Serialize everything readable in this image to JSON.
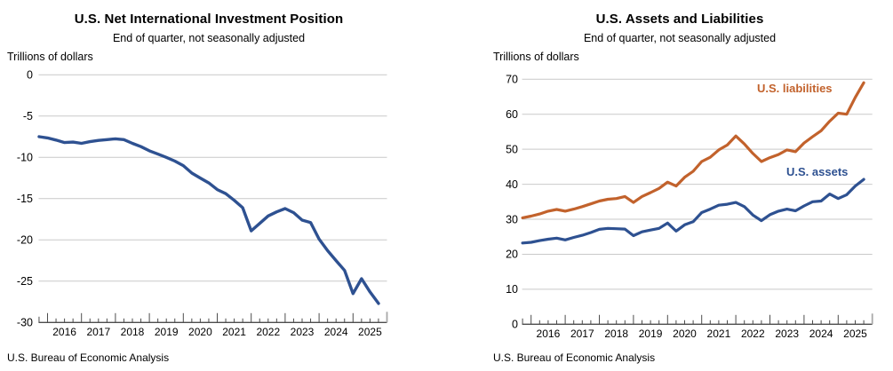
{
  "page": {
    "source_note": "U.S. Bureau of Economic Analysis"
  },
  "quarters": [
    "2015Q3",
    "2015Q4",
    "2016Q1",
    "2016Q2",
    "2016Q3",
    "2016Q4",
    "2017Q1",
    "2017Q2",
    "2017Q3",
    "2017Q4",
    "2018Q1",
    "2018Q2",
    "2018Q3",
    "2018Q4",
    "2019Q1",
    "2019Q2",
    "2019Q3",
    "2019Q4",
    "2020Q1",
    "2020Q2",
    "2020Q3",
    "2020Q4",
    "2021Q1",
    "2021Q2",
    "2021Q3",
    "2021Q4",
    "2022Q1",
    "2022Q2",
    "2022Q3",
    "2022Q4",
    "2023Q1",
    "2023Q2",
    "2023Q3",
    "2023Q4",
    "2024Q1",
    "2024Q2",
    "2024Q3",
    "2024Q4",
    "2025Q1",
    "2025Q2",
    "2025Q3"
  ],
  "year_tick_labels": [
    "2016",
    "2017",
    "2018",
    "2019",
    "2020",
    "2021",
    "2022",
    "2023",
    "2024",
    "2025"
  ],
  "chart_data": [
    {
      "type": "line",
      "title": "U.S. Net International Investment Position",
      "subtitle": "End of quarter, not seasonally adjusted",
      "ylabel": "Trillions of dollars",
      "source": "U.S. Bureau of Economic Analysis",
      "ylim": [
        -30,
        0
      ],
      "yticks": [
        0,
        -5,
        -10,
        -15,
        -20,
        -25,
        -30
      ],
      "grid": "horizontal",
      "x_unit": "end of quarter",
      "legend": "none",
      "series": [
        {
          "name": "U.S. net international investment position",
          "color": "#2e5191",
          "values": [
            -7.5,
            -7.65,
            -7.9,
            -8.2,
            -8.15,
            -8.3,
            -8.1,
            -7.95,
            -7.85,
            -7.75,
            -7.85,
            -8.3,
            -8.7,
            -9.2,
            -9.6,
            -10.0,
            -10.45,
            -11.0,
            -11.9,
            -12.5,
            -13.1,
            -13.9,
            -14.4,
            -15.2,
            -16.1,
            -18.9,
            -18.0,
            -17.1,
            -16.6,
            -16.2,
            -16.7,
            -17.6,
            -17.9,
            -19.9,
            -21.3,
            -22.5,
            -23.7,
            -26.5,
            -24.7,
            -26.3,
            -27.7
          ]
        }
      ]
    },
    {
      "type": "line",
      "title": "U.S. Assets and Liabilities",
      "subtitle": "End of quarter, not seasonally adjusted",
      "ylabel": "Trillions of dollars",
      "source": "U.S. Bureau of Economic Analysis",
      "ylim": [
        0,
        70
      ],
      "yticks": [
        70,
        60,
        50,
        40,
        30,
        20,
        10,
        0
      ],
      "grid": "horizontal",
      "x_unit": "end of quarter",
      "legend": "inline labels",
      "series": [
        {
          "name": "U.S. liabilities",
          "color": "#c2622c",
          "values": [
            30.4,
            30.9,
            31.5,
            32.3,
            32.8,
            32.3,
            32.9,
            33.6,
            34.4,
            35.2,
            35.7,
            35.9,
            36.5,
            34.8,
            36.5,
            37.6,
            38.8,
            40.6,
            39.5,
            42.0,
            43.7,
            46.5,
            47.7,
            49.8,
            51.2,
            53.8,
            51.5,
            48.8,
            46.5,
            47.6,
            48.5,
            49.8,
            49.3,
            51.8,
            53.6,
            55.3,
            58.0,
            60.3,
            60.0,
            64.8,
            69.0
          ]
        },
        {
          "name": "U.S. assets",
          "color": "#2e5191",
          "values": [
            23.2,
            23.4,
            23.9,
            24.3,
            24.6,
            24.1,
            24.8,
            25.4,
            26.2,
            27.1,
            27.4,
            27.3,
            27.2,
            25.3,
            26.4,
            26.9,
            27.4,
            28.9,
            26.6,
            28.4,
            29.3,
            31.9,
            32.9,
            34.0,
            34.3,
            34.8,
            33.6,
            31.2,
            29.6,
            31.3,
            32.3,
            32.9,
            32.4,
            33.8,
            35.0,
            35.2,
            37.2,
            35.9,
            37.0,
            39.5,
            41.4
          ]
        }
      ]
    }
  ]
}
